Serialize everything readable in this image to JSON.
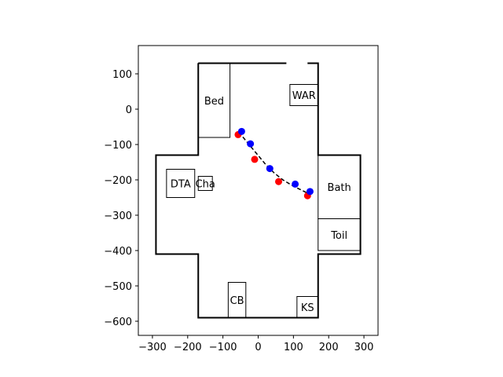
{
  "chart_data": {
    "type": "scatter",
    "xlim": [
      -340,
      340
    ],
    "ylim": [
      -640,
      180
    ],
    "x_ticks": [
      -300,
      -200,
      -100,
      0,
      100,
      200,
      300
    ],
    "y_ticks": [
      100,
      0,
      -100,
      -200,
      -300,
      -400,
      -500,
      -600
    ],
    "x_tick_labels": [
      "−300",
      "−200",
      "−100",
      "0",
      "100",
      "200",
      "300"
    ],
    "y_tick_labels": [
      "100",
      "0",
      "−100",
      "−200",
      "−300",
      "−400",
      "−500",
      "−600"
    ],
    "grid": false,
    "floor_outline": [
      [
        -170,
        130
      ],
      [
        170,
        130
      ],
      [
        170,
        -130
      ],
      [
        290,
        -130
      ],
      [
        290,
        -410
      ],
      [
        170,
        -410
      ],
      [
        170,
        -590
      ],
      [
        -170,
        -590
      ],
      [
        -170,
        -410
      ],
      [
        -290,
        -410
      ],
      [
        -290,
        -130
      ],
      [
        -170,
        -130
      ],
      [
        -170,
        130
      ]
    ],
    "doorway_gaps": [
      {
        "x1": 80,
        "y1": 130,
        "x2": 140,
        "y2": 130
      },
      {
        "x1": 170,
        "y1": -190,
        "x2": 170,
        "y2": -260
      },
      {
        "x1": 170,
        "y1": -320,
        "x2": 170,
        "y2": -390
      }
    ],
    "rooms": [
      {
        "label": "Bed",
        "x0": -170,
        "x1": -80,
        "y0": -80,
        "y1": 130
      },
      {
        "label": "WAR",
        "x0": 90,
        "x1": 170,
        "y0": 10,
        "y1": 70
      },
      {
        "label": "Bath",
        "x0": 170,
        "x1": 290,
        "y0": -310,
        "y1": -130
      },
      {
        "label": "Toil",
        "x0": 170,
        "x1": 290,
        "y0": -400,
        "y1": -310
      },
      {
        "label": "DTA",
        "x0": -260,
        "x1": -180,
        "y0": -250,
        "y1": -170
      },
      {
        "label": "Cha",
        "x0": -170,
        "x1": -130,
        "y0": -230,
        "y1": -190
      },
      {
        "label": "CB",
        "x0": -85,
        "x1": -35,
        "y0": -590,
        "y1": -490
      },
      {
        "label": "KS",
        "x0": 110,
        "x1": 170,
        "y0": -590,
        "y1": -530
      }
    ],
    "path_dashed": {
      "x": [
        -55,
        -30,
        -5,
        20,
        45,
        70,
        100,
        125,
        145
      ],
      "y": [
        -65,
        -95,
        -125,
        -155,
        -180,
        -200,
        -218,
        -230,
        -240
      ],
      "color": "#000000"
    },
    "series": [
      {
        "color": "#ff0000",
        "x": [
          -57,
          -10,
          58,
          140
        ],
        "y": [
          -72,
          -142,
          -205,
          -245
        ]
      },
      {
        "color": "#0000ff",
        "x": [
          -47,
          -22,
          33,
          105,
          147
        ],
        "y": [
          -63,
          -98,
          -168,
          -212,
          -233
        ]
      }
    ]
  }
}
